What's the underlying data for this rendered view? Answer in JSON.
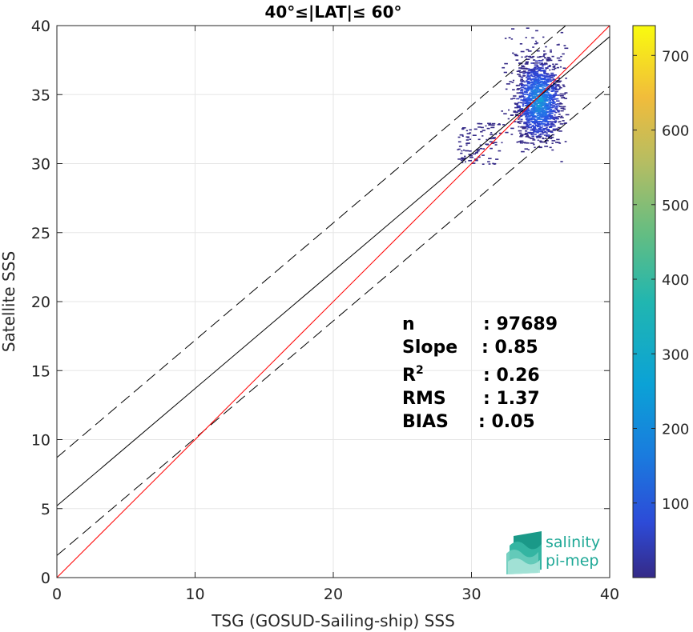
{
  "chart_data": {
    "type": "scatter",
    "title": "40°≤|LAT|≤ 60°",
    "xlabel": "TSG (GOSUD-Sailing-ship) SSS",
    "ylabel": "Satellite SSS",
    "xlim": [
      0,
      40
    ],
    "ylim": [
      0,
      40
    ],
    "xticks": [
      "0",
      "10",
      "20",
      "30",
      "40"
    ],
    "yticks": [
      "0",
      "5",
      "10",
      "15",
      "20",
      "25",
      "30",
      "35",
      "40"
    ],
    "grid": true,
    "colorbar": {
      "range": [
        0,
        740
      ],
      "ticks": [
        "100",
        "200",
        "300",
        "400",
        "500",
        "600",
        "700"
      ],
      "colormap": "parula"
    },
    "lines": {
      "identity": {
        "slope": 1.0,
        "intercept": 0.0,
        "color": "#ff0000"
      },
      "fit": {
        "slope": 0.85,
        "intercept": 5.2,
        "color": "#000000"
      },
      "fit_upper": {
        "slope": 0.85,
        "intercept": 8.7,
        "color": "#000000"
      },
      "fit_lower": {
        "slope": 0.85,
        "intercept": 1.6,
        "color": "#000000"
      }
    },
    "density_cluster": {
      "x_range": [
        28.9,
        36.8
      ],
      "y_range": [
        28.4,
        39.9
      ],
      "peak": [
        34.8,
        34.6
      ]
    },
    "stats": {
      "n_label": "n",
      "n_value": ": 97689",
      "slope_label": "Slope",
      "slope_value": ": 0.85",
      "r2_label": "R",
      "r2_sup": "2",
      "r2_value": ": 0.26",
      "rms_label": "RMS",
      "rms_value": ": 1.37",
      "bias_label": "BIAS",
      "bias_value": ": 0.05"
    }
  },
  "logo": {
    "line1": "salinity",
    "line2": "pi-mep"
  }
}
